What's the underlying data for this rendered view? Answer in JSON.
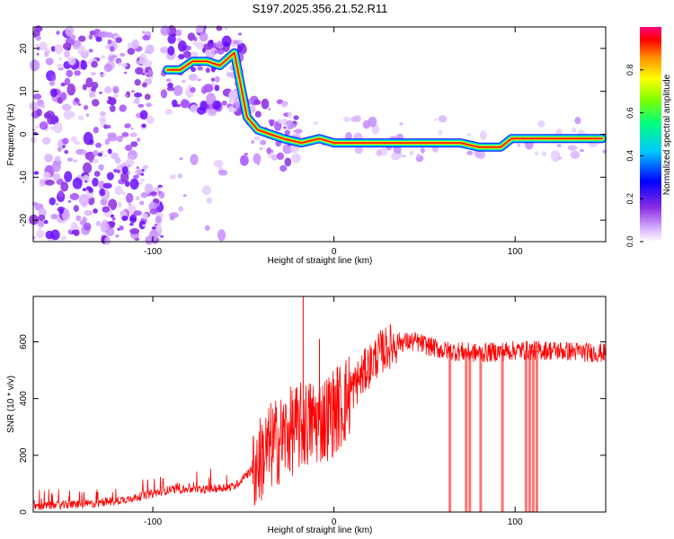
{
  "title": "S197.2025.356.21.52.R11",
  "chart_data": [
    {
      "type": "heatmap",
      "name": "spectrogram",
      "title": "S197.2025.356.21.52.R11",
      "xlabel": "Height of straight line (km)",
      "ylabel": "Frequency (Hz)",
      "xlim": [
        -166,
        150
      ],
      "ylim": [
        -25,
        25
      ],
      "xticks": [
        -100,
        0,
        100
      ],
      "yticks": [
        -20,
        -10,
        0,
        10,
        20
      ],
      "colorbar": {
        "label": "Normalized spectral amplitude",
        "range": [
          0,
          1
        ],
        "ticks": [
          "0.0",
          "0.2",
          "0.4",
          "0.6",
          "0.8"
        ]
      },
      "ridge": [
        {
          "x": -92,
          "y": 15
        },
        {
          "x": -85,
          "y": 15
        },
        {
          "x": -78,
          "y": 17
        },
        {
          "x": -70,
          "y": 17
        },
        {
          "x": -63,
          "y": 16
        },
        {
          "x": -55,
          "y": 19
        },
        {
          "x": -48,
          "y": 4
        },
        {
          "x": -42,
          "y": 1
        },
        {
          "x": -35,
          "y": 0
        },
        {
          "x": -28,
          "y": -1
        },
        {
          "x": -18,
          "y": -2
        },
        {
          "x": -8,
          "y": -1
        },
        {
          "x": 0,
          "y": -2
        },
        {
          "x": 20,
          "y": -2
        },
        {
          "x": 50,
          "y": -2
        },
        {
          "x": 70,
          "y": -2
        },
        {
          "x": 80,
          "y": -3
        },
        {
          "x": 92,
          "y": -3
        },
        {
          "x": 98,
          "y": -1
        },
        {
          "x": 115,
          "y": -1
        },
        {
          "x": 135,
          "y": -1
        },
        {
          "x": 148,
          "y": -1
        }
      ]
    },
    {
      "type": "line",
      "name": "snr",
      "xlabel": "Height of straight line (km)",
      "ylabel": "SNR (10 * v/v)",
      "xlim": [
        -166,
        150
      ],
      "ylim": [
        0,
        760
      ],
      "xticks": [
        -100,
        0,
        100
      ],
      "yticks": [
        0,
        200,
        400,
        600
      ],
      "color": "#ff0000",
      "envelope": {
        "x": [
          -166,
          -130,
          -110,
          -90,
          -70,
          -55,
          -45,
          -35,
          -25,
          -15,
          -5,
          5,
          15,
          25,
          35,
          45,
          60,
          80,
          100,
          120,
          150
        ],
        "y": [
          20,
          30,
          50,
          80,
          80,
          90,
          150,
          230,
          280,
          310,
          330,
          380,
          480,
          560,
          600,
          600,
          570,
          560,
          570,
          570,
          560
        ]
      },
      "spikes": [
        {
          "x": -17,
          "y": 760
        },
        {
          "x": -8,
          "y": 610
        },
        {
          "x": 2,
          "y": 510
        },
        {
          "x": 16,
          "y": 420
        }
      ],
      "dropouts": [
        64,
        73,
        75,
        81,
        93,
        106,
        108,
        110,
        112
      ]
    }
  ]
}
